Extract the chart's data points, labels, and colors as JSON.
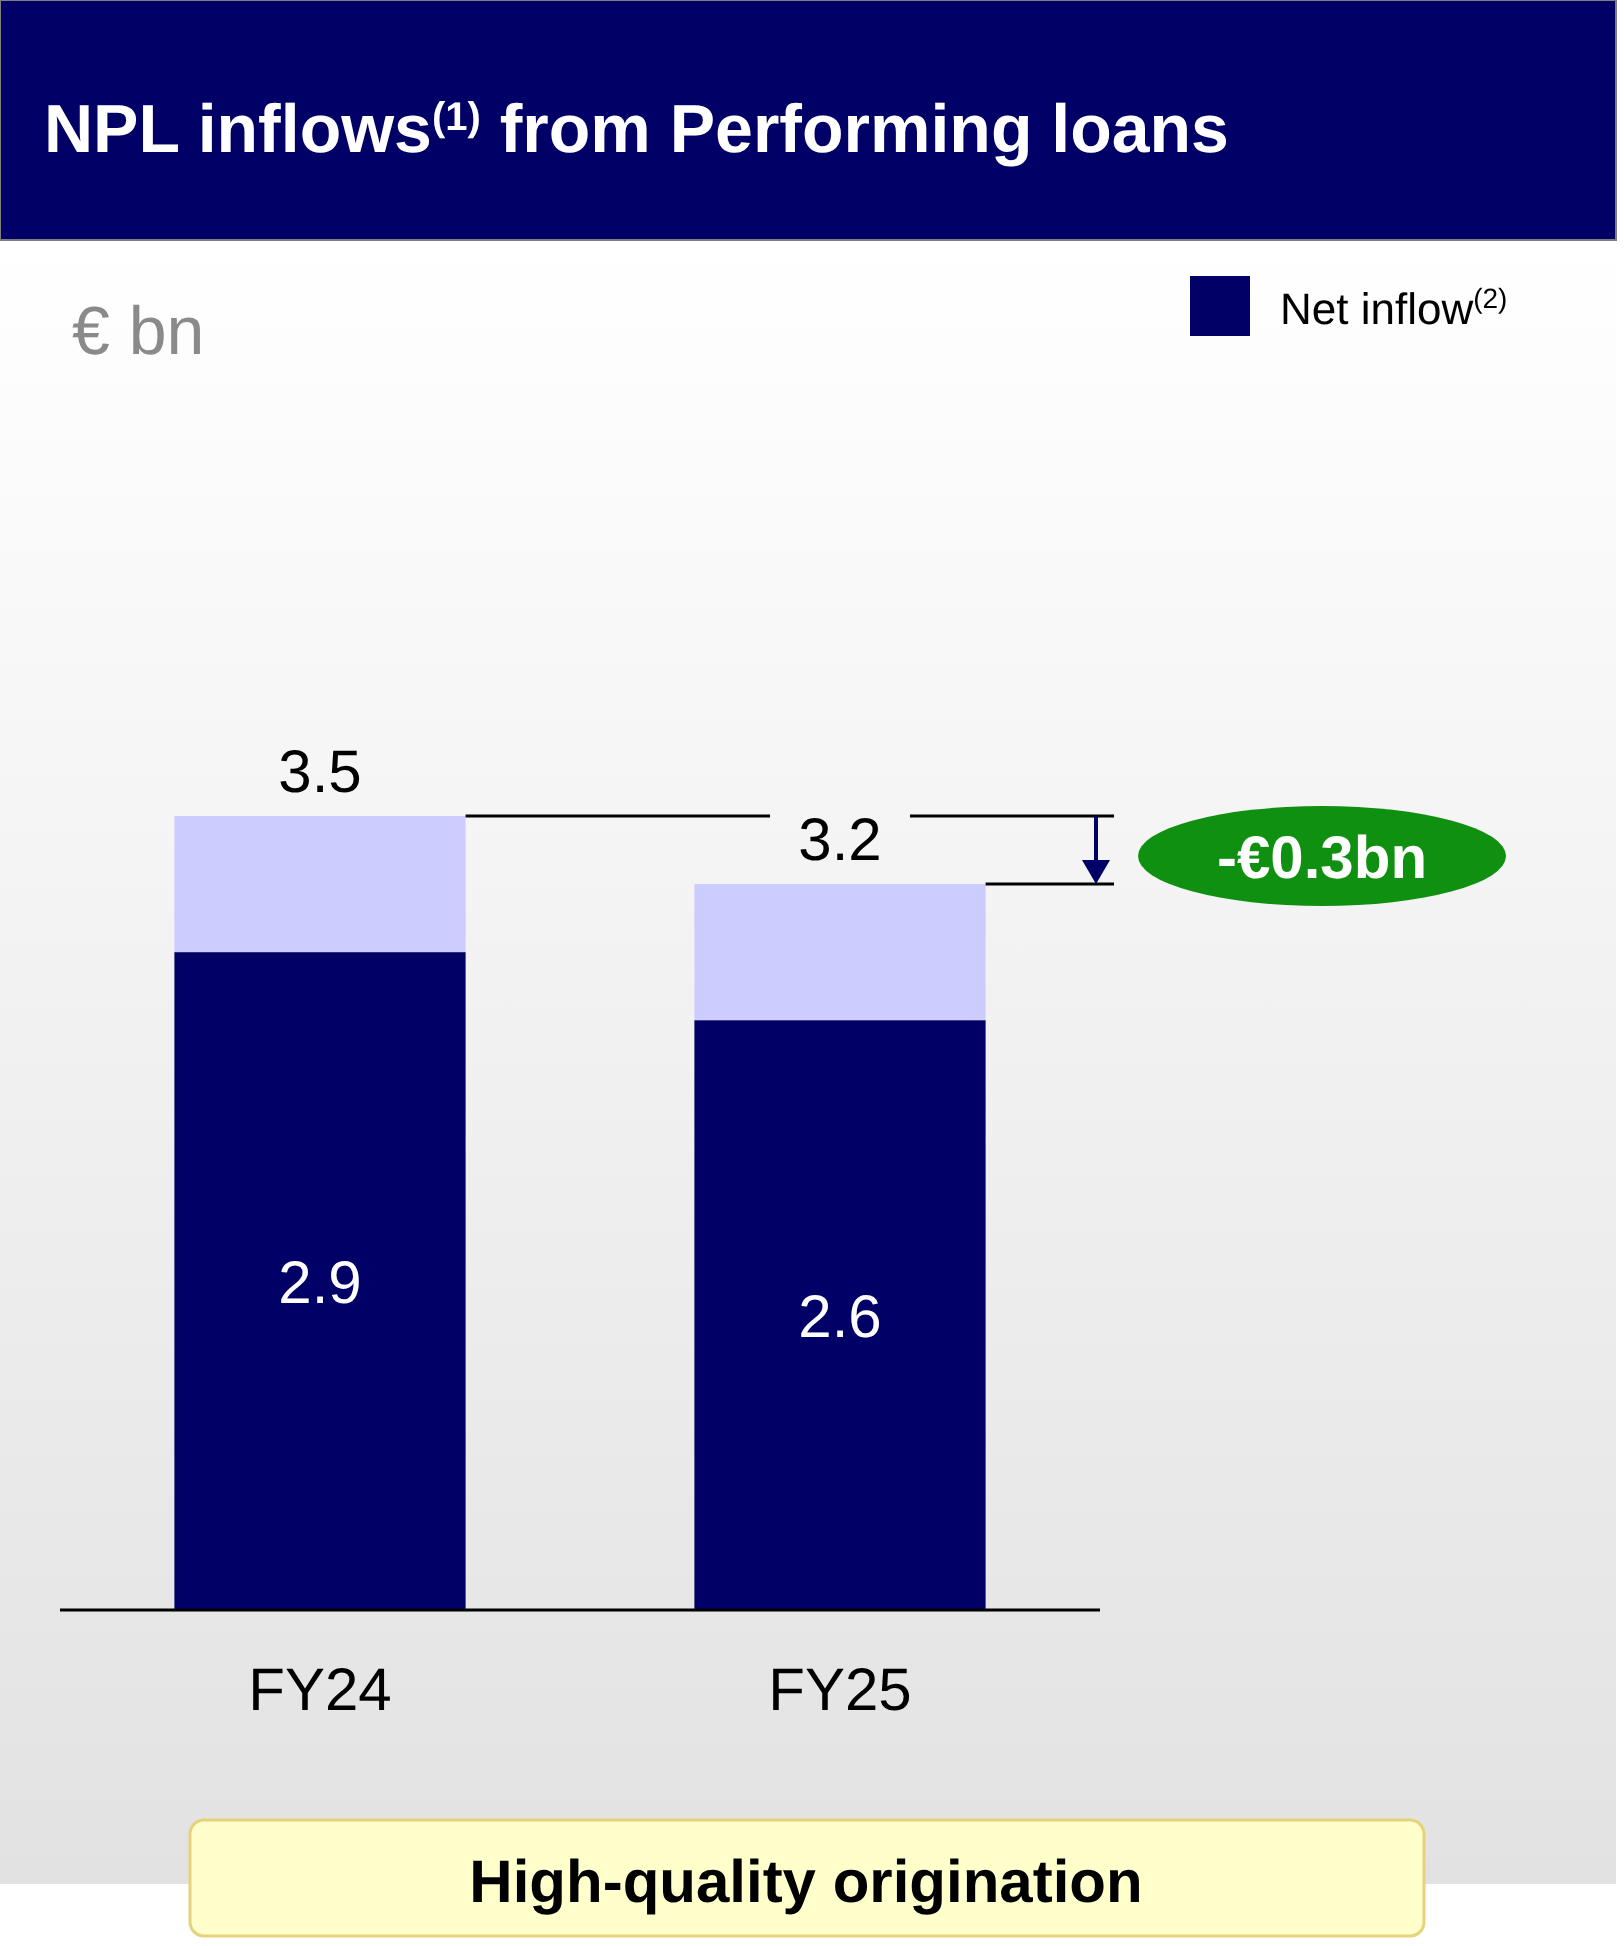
{
  "chart_data": {
    "type": "bar",
    "title": "NPL inflows$^{(1)}$ from Performing loans",
    "categories": [
      "FY24",
      "FY25"
    ],
    "stacked": true,
    "series": [
      {
        "name": "Net inflow$^{(2)}$",
        "color": "#000066",
        "values": [
          2.9,
          2.6
        ],
        "value_labels": [
          "2.9",
          "2.6"
        ]
      },
      {
        "color": "#ccccff",
        "values": [
          0.6,
          0.6
        ]
      }
    ],
    "totals": [
      "3.5",
      "3.2"
    ],
    "legend": "top right",
    "annotations": [
      "-€0.3bn",
      "High-quality origination",
      "€ bn"
    ]
  }
}
